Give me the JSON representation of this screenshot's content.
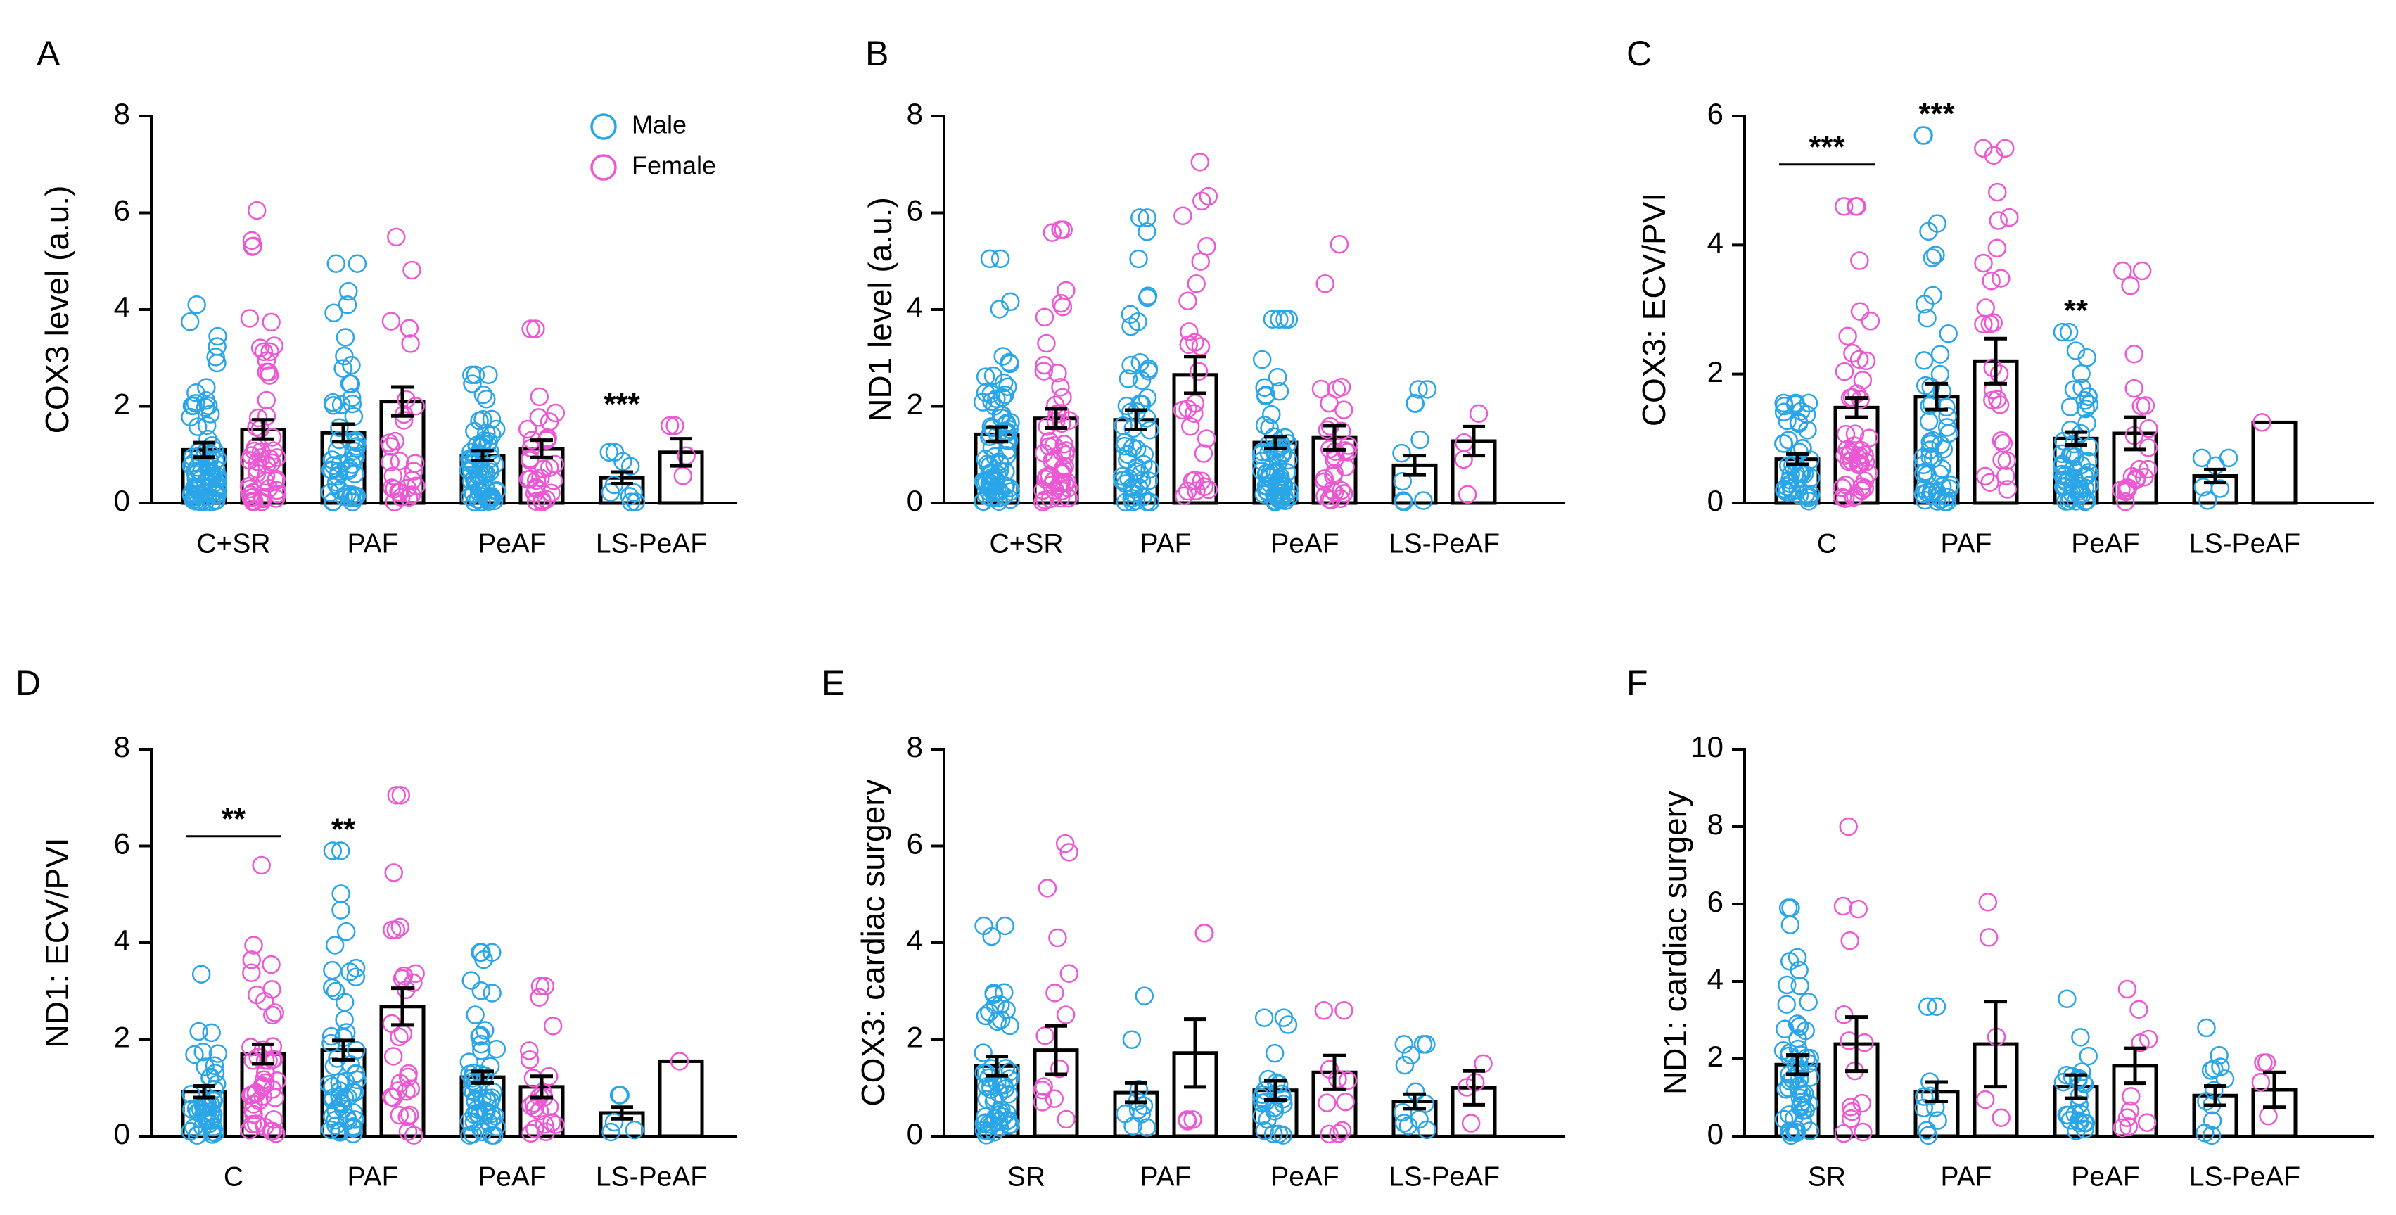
{
  "colors": {
    "male": "#2aa6e8",
    "female": "#ec58d4",
    "bar": "#000000"
  },
  "legend": {
    "male_label": "Male",
    "female_label": "Female"
  },
  "chart_data": [
    {
      "id": "A",
      "letter": "A",
      "type": "bar",
      "title": "",
      "xlabel": "",
      "ylabel": "COX3 level (a.u.)",
      "ylim": [
        0,
        8
      ],
      "yticks": [
        "0",
        "2",
        "4",
        "6",
        "8"
      ],
      "categories": [
        "C+SR",
        "PAF",
        "PeAF",
        "LS-PeAF"
      ],
      "series": [
        {
          "name": "Male",
          "values": [
            1.1,
            1.45,
            0.98,
            0.52
          ],
          "sem": [
            0.15,
            0.18,
            0.1,
            0.12
          ],
          "max": [
            4.1,
            4.95,
            2.65,
            1.05
          ],
          "n": [
            80,
            55,
            70,
            10
          ]
        },
        {
          "name": "Female",
          "values": [
            1.52,
            2.1,
            1.12,
            1.05
          ],
          "sem": [
            0.2,
            0.3,
            0.18,
            0.28
          ],
          "max": [
            6.05,
            5.5,
            3.6,
            1.6
          ],
          "n": [
            55,
            28,
            30,
            4
          ]
        }
      ],
      "annotations": [
        {
          "text": "***",
          "category": "LS-PeAF",
          "series": "Male",
          "y": 2.0
        }
      ],
      "brackets": [],
      "legend": true
    },
    {
      "id": "B",
      "letter": "B",
      "type": "bar",
      "title": "",
      "xlabel": "",
      "ylabel": "ND1 level (a.u.)",
      "ylim": [
        0,
        8
      ],
      "yticks": [
        "0",
        "2",
        "4",
        "6",
        "8"
      ],
      "categories": [
        "C+SR",
        "PAF",
        "PeAF",
        "LS-PeAF"
      ],
      "series": [
        {
          "name": "Male",
          "values": [
            1.42,
            1.72,
            1.25,
            0.78
          ],
          "sem": [
            0.15,
            0.2,
            0.12,
            0.2
          ],
          "max": [
            5.05,
            5.9,
            3.8,
            2.35
          ],
          "n": [
            80,
            55,
            70,
            10
          ]
        },
        {
          "name": "Female",
          "values": [
            1.75,
            2.65,
            1.35,
            1.28
          ],
          "sem": [
            0.2,
            0.38,
            0.25,
            0.3
          ],
          "max": [
            5.65,
            7.05,
            5.35,
            1.85
          ],
          "n": [
            55,
            28,
            30,
            4
          ]
        }
      ],
      "annotations": [],
      "brackets": [],
      "legend": false
    },
    {
      "id": "C",
      "letter": "C",
      "type": "bar",
      "title": "",
      "xlabel": "",
      "ylabel": "COX3: ECV/PVI",
      "ylim": [
        0,
        6
      ],
      "yticks": [
        "0",
        "2",
        "4",
        "6"
      ],
      "categories": [
        "C",
        "PAF",
        "PeAF",
        "LS-PeAF"
      ],
      "series": [
        {
          "name": "Male",
          "values": [
            0.68,
            1.65,
            1.0,
            0.42
          ],
          "sem": [
            0.08,
            0.2,
            0.1,
            0.1
          ],
          "max": [
            1.55,
            5.7,
            2.65,
            0.7
          ],
          "n": [
            45,
            55,
            55,
            6
          ]
        },
        {
          "name": "Female",
          "values": [
            1.48,
            2.2,
            1.08,
            1.25
          ],
          "sem": [
            0.15,
            0.35,
            0.25,
            0.0
          ],
          "max": [
            4.6,
            5.5,
            3.6,
            1.25
          ],
          "n": [
            45,
            28,
            22,
            1
          ]
        }
      ],
      "annotations": [
        {
          "text": "***",
          "category": "PAF",
          "series": "Male",
          "y": 6.0
        },
        {
          "text": "**",
          "category": "PeAF",
          "series": "Male",
          "y": 2.95
        }
      ],
      "brackets": [
        {
          "text": "***",
          "category": "C",
          "y": 5.25
        }
      ],
      "legend": false
    },
    {
      "id": "D",
      "letter": "D",
      "type": "bar",
      "title": "",
      "xlabel": "",
      "ylabel": "ND1: ECV/PVI",
      "ylim": [
        0,
        8
      ],
      "yticks": [
        "0",
        "2",
        "4",
        "6",
        "8"
      ],
      "categories": [
        "C",
        "PAF",
        "PeAF",
        "LS-PeAF"
      ],
      "series": [
        {
          "name": "Male",
          "values": [
            0.92,
            1.78,
            1.22,
            0.48
          ],
          "sem": [
            0.12,
            0.2,
            0.12,
            0.12
          ],
          "max": [
            3.35,
            5.9,
            3.8,
            0.85
          ],
          "n": [
            45,
            55,
            55,
            6
          ]
        },
        {
          "name": "Female",
          "values": [
            1.7,
            2.68,
            1.02,
            1.55
          ],
          "sem": [
            0.2,
            0.38,
            0.22,
            0.0
          ],
          "max": [
            5.6,
            7.05,
            3.1,
            1.55
          ],
          "n": [
            45,
            28,
            22,
            1
          ]
        }
      ],
      "annotations": [
        {
          "text": "**",
          "category": "PAF",
          "series": "Male",
          "y": 6.3
        }
      ],
      "brackets": [
        {
          "text": "**",
          "category": "C",
          "y": 6.2
        }
      ],
      "legend": false
    },
    {
      "id": "E",
      "letter": "E",
      "type": "bar",
      "title": "",
      "xlabel": "",
      "ylabel": "COX3: cardiac surgery",
      "ylim": [
        0,
        8
      ],
      "yticks": [
        "0",
        "2",
        "4",
        "6",
        "8"
      ],
      "categories": [
        "SR",
        "PAF",
        "PeAF",
        "LS-PeAF"
      ],
      "series": [
        {
          "name": "Male",
          "values": [
            1.45,
            0.9,
            0.95,
            0.72
          ],
          "sem": [
            0.2,
            0.2,
            0.2,
            0.15
          ],
          "max": [
            4.35,
            2.9,
            2.45,
            1.9
          ],
          "n": [
            55,
            10,
            24,
            12
          ]
        },
        {
          "name": "Female",
          "values": [
            1.78,
            1.72,
            1.32,
            1.0
          ],
          "sem": [
            0.5,
            0.7,
            0.35,
            0.35
          ],
          "max": [
            6.05,
            4.2,
            2.6,
            1.5
          ],
          "n": [
            14,
            5,
            10,
            4
          ]
        }
      ],
      "annotations": [],
      "brackets": [],
      "legend": false
    },
    {
      "id": "F",
      "letter": "F",
      "type": "bar",
      "title": "",
      "xlabel": "",
      "ylabel": "ND1: cardiac surgery",
      "ylim": [
        0,
        10
      ],
      "yticks": [
        "0",
        "2",
        "4",
        "6",
        "8",
        "10"
      ],
      "categories": [
        "SR",
        "PAF",
        "PeAF",
        "LS-PeAF"
      ],
      "series": [
        {
          "name": "Male",
          "values": [
            1.85,
            1.15,
            1.28,
            1.05
          ],
          "sem": [
            0.25,
            0.25,
            0.3,
            0.25
          ],
          "max": [
            5.9,
            3.35,
            3.55,
            2.8
          ],
          "n": [
            55,
            10,
            24,
            12
          ]
        },
        {
          "name": "Female",
          "values": [
            2.38,
            2.38,
            1.82,
            1.2
          ],
          "sem": [
            0.7,
            1.1,
            0.45,
            0.45
          ],
          "max": [
            8.0,
            6.05,
            3.8,
            1.9
          ],
          "n": [
            14,
            5,
            10,
            4
          ]
        }
      ],
      "annotations": [],
      "brackets": [],
      "legend": false
    }
  ]
}
